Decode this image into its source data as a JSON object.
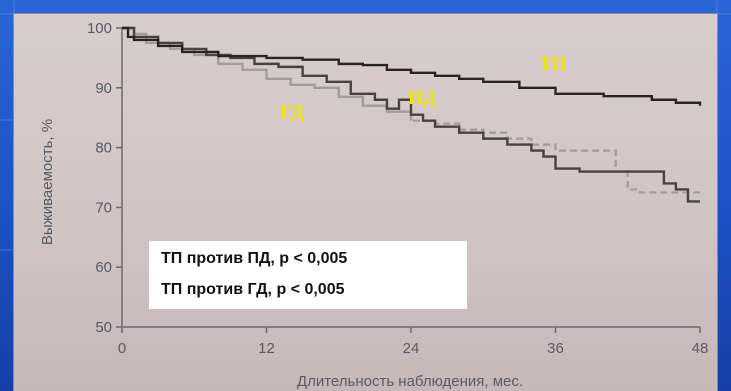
{
  "chart_data": {
    "type": "line",
    "title": "",
    "xlabel": "Длительность наблюдения, мес.",
    "ylabel": "Выживаемость, %",
    "xlim": [
      0,
      48
    ],
    "ylim": [
      50,
      100
    ],
    "x_ticks": [
      0,
      12,
      24,
      36,
      48
    ],
    "y_ticks": [
      50,
      60,
      70,
      80,
      90,
      100
    ],
    "grid": false,
    "series": [
      {
        "name": "ТП",
        "color": "#2b2424",
        "style": "solid",
        "x": [
          0,
          0.5,
          1,
          3,
          5,
          8,
          12,
          15,
          18,
          20,
          22,
          24,
          26,
          28,
          30,
          33,
          36,
          40,
          44,
          46,
          48
        ],
        "y": [
          100,
          98.5,
          98,
          97,
          96,
          95.3,
          95,
          94.7,
          94,
          93.8,
          93,
          92.5,
          92,
          91.5,
          91,
          90,
          89,
          88.6,
          88,
          87.5,
          87
        ]
      },
      {
        "name": "ПД",
        "color": "#4a4242",
        "style": "solid",
        "x": [
          0,
          1,
          3,
          5,
          7,
          9,
          11,
          13,
          15,
          17,
          19,
          21,
          22,
          23,
          24,
          25,
          26,
          28,
          30,
          32,
          34,
          35,
          36,
          38,
          40,
          42,
          44,
          45,
          46,
          47,
          48
        ],
        "y": [
          100,
          98.5,
          97.5,
          96.5,
          95.5,
          95,
          94,
          93.5,
          92,
          91,
          89,
          88,
          86.5,
          88,
          85.5,
          84.5,
          83.5,
          82.5,
          81.5,
          80.5,
          79.5,
          78.5,
          76.5,
          76,
          76,
          76,
          76,
          74,
          73,
          71,
          71
        ]
      },
      {
        "name": "ГД",
        "color": "#a29c9c",
        "style": "solid-then-dashed",
        "x": [
          0,
          1,
          2,
          4,
          6,
          8,
          10,
          12,
          14,
          16,
          18,
          20,
          22,
          24,
          26,
          28,
          30,
          32,
          34,
          36,
          38,
          40,
          41,
          42,
          43,
          44,
          46,
          48
        ],
        "y": [
          100,
          99,
          97.5,
          96.5,
          95.5,
          94,
          93,
          91.5,
          90.5,
          90,
          88.5,
          87,
          86,
          84.5,
          84,
          83,
          82.5,
          81.5,
          80.5,
          79.5,
          79.5,
          79.5,
          76,
          73,
          72.5,
          72.5,
          72.5,
          72.5
        ]
      }
    ],
    "annotations": [
      "ТП против ПД, р < 0,005",
      "ТП против ГД, р < 0,005"
    ]
  }
}
